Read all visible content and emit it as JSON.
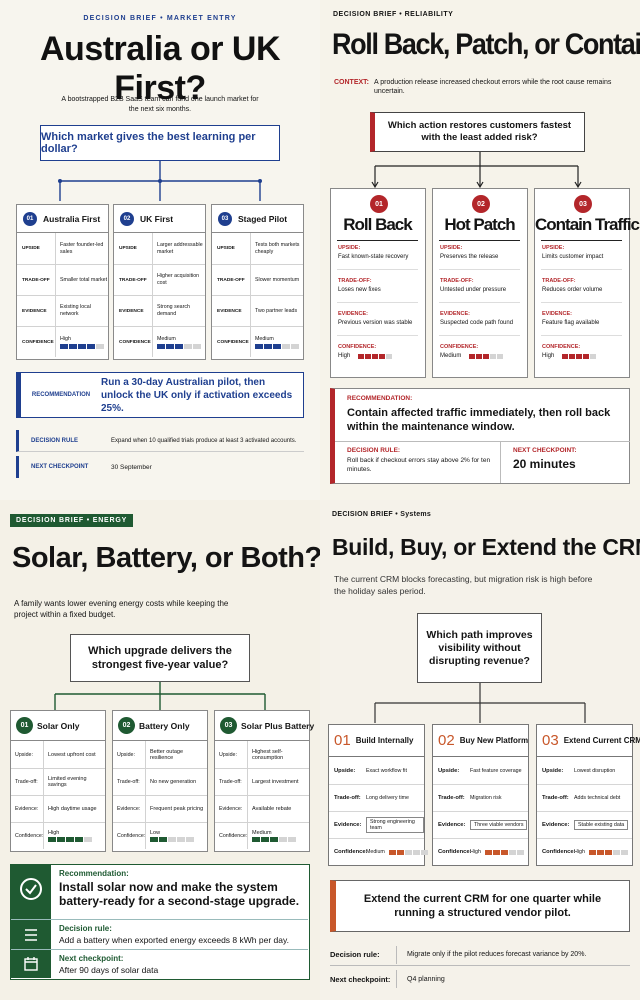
{
  "q1": {
    "kicker": "DECISION BRIEF • MARKET ENTRY",
    "title": "Australia or UK First?",
    "intro": "A bootstrapped B2B SaaS team can fund one launch market for the next six months.",
    "question": "Which market gives the best learning per dollar?",
    "options": [
      {
        "num": "01",
        "name": "Australia First",
        "upside": "Faster founder-led sales",
        "tradeoff": "Smaller total market",
        "evidence": "Existing local network",
        "confidence": "High",
        "level": 4
      },
      {
        "num": "02",
        "name": "UK First",
        "upside": "Larger addressable market",
        "tradeoff": "Higher acquisition cost",
        "evidence": "Strong search demand",
        "confidence": "Medium",
        "level": 3
      },
      {
        "num": "03",
        "name": "Staged Pilot",
        "upside": "Tests both markets cheaply",
        "tradeoff": "Slower momentum",
        "evidence": "Two partner leads",
        "confidence": "Medium",
        "level": 3
      }
    ],
    "row_labels": {
      "upside": "UPSIDE",
      "tradeoff": "TRADE-OFF",
      "evidence": "EVIDENCE",
      "confidence": "CONFIDENCE"
    },
    "rec_label": "RECOMMENDATION",
    "rec_text": "Run a 30-day Australian pilot, then unlock the UK only if activation exceeds 25%.",
    "rule_label": "DECISION RULE",
    "rule_text": "Expand when 10 qualified trials produce at least 3 activated accounts.",
    "next_label": "NEXT CHECKPOINT",
    "next_text": "30 September",
    "accent": "#1f3f8f"
  },
  "q2": {
    "kicker": "DECISION BRIEF • RELIABILITY",
    "title": "Roll Back, Patch, or Contain?",
    "context_label": "CONTEXT:",
    "context_text": "A production release increased checkout errors while the root cause remains uncertain.",
    "question": "Which action restores customers fastest with the least added risk?",
    "options": [
      {
        "num": "01",
        "name": "Roll Back",
        "upside": "Fast known-state recovery",
        "tradeoff": "Loses new fixes",
        "evidence": "Previous version was stable",
        "confidence": "High",
        "level": 4
      },
      {
        "num": "02",
        "name": "Hot Patch",
        "upside": "Preserves the release",
        "tradeoff": "Untested under pressure",
        "evidence": "Suspected code path found",
        "confidence": "Medium",
        "level": 3
      },
      {
        "num": "03",
        "name": "Contain Traffic",
        "upside": "Limits customer impact",
        "tradeoff": "Reduces order volume",
        "evidence": "Feature flag available",
        "confidence": "High",
        "level": 4
      }
    ],
    "row_labels": {
      "upside": "UPSIDE:",
      "tradeoff": "TRADE-OFF:",
      "evidence": "EVIDENCE:",
      "confidence": "CONFIDENCE:"
    },
    "rec_label": "RECOMMENDATION:",
    "rec_text": "Contain affected traffic immediately, then roll back within the maintenance window.",
    "rule_label": "DECISION RULE:",
    "rule_text": "Roll back if checkout errors stay above 2% for ten minutes.",
    "next_label": "NEXT CHECKPOINT:",
    "next_text": "20 minutes",
    "accent": "#b3262a"
  },
  "q3": {
    "kicker": "DECISION BRIEF • ENERGY",
    "title": "Solar, Battery, or Both?",
    "intro": "A family wants lower evening energy costs while keeping the project within a fixed budget.",
    "question": "Which upgrade delivers the strongest five-year value?",
    "options": [
      {
        "num": "01",
        "name": "Solar Only",
        "upside": "Lowest upfront cost",
        "tradeoff": "Limited evening savings",
        "evidence": "High daytime usage",
        "confidence": "High",
        "level": 4
      },
      {
        "num": "02",
        "name": "Battery Only",
        "upside": "Better outage resilience",
        "tradeoff": "No new generation",
        "evidence": "Frequent peak pricing",
        "confidence": "Low",
        "level": 2
      },
      {
        "num": "03",
        "name": "Solar Plus Battery",
        "upside": "Highest self-consumption",
        "tradeoff": "Largest investment",
        "evidence": "Available rebate",
        "confidence": "Medium",
        "level": 3
      }
    ],
    "row_labels": {
      "upside": "Upside:",
      "tradeoff": "Trade-off:",
      "evidence": "Evidence:",
      "confidence": "Confidence:"
    },
    "rec_label": "Recommendation:",
    "rec_text": "Install solar now and make the system battery-ready for a second-stage upgrade.",
    "rule_label": "Decision rule:",
    "rule_text": "Add a battery when exported energy exceeds 8 kWh per day.",
    "next_label": "Next checkpoint:",
    "next_text": "After 90 days of solar data",
    "accent": "#1f5a32"
  },
  "q4": {
    "kicker": "DECISION BRIEF • Systems",
    "title": "Build, Buy, or Extend the CRM?",
    "intro": "The current CRM blocks forecasting, but migration risk is high before the holiday sales period.",
    "question": "Which path improves visibility without disrupting revenue?",
    "options": [
      {
        "num": "01",
        "name": "Build Internally",
        "upside": "Exact workflow fit",
        "tradeoff": "Long delivery time",
        "evidence": "Strong engineering team",
        "confidence": "Medium",
        "level": 2
      },
      {
        "num": "02",
        "name": "Buy New Platform",
        "upside": "Fast feature coverage",
        "tradeoff": "Migration risk",
        "evidence": "Three viable vendors",
        "confidence": "High",
        "level": 3
      },
      {
        "num": "03",
        "name": "Extend Current CRM",
        "upside": "Lowest disruption",
        "tradeoff": "Adds technical debt",
        "evidence": "Stable existing data",
        "confidence": "High",
        "level": 3
      }
    ],
    "row_labels": {
      "upside": "Upside:",
      "tradeoff": "Trade-off:",
      "evidence": "Evidence:",
      "confidence": "Confidence:"
    },
    "rec_text": "Extend the current CRM for one quarter while running a structured vendor pilot.",
    "rule_label": "Decision rule:",
    "rule_text": "Migrate only if the pilot reduces forecast variance by 20%.",
    "next_label": "Next checkpoint:",
    "next_text": "Q4 planning",
    "accent": "#c8572a"
  }
}
